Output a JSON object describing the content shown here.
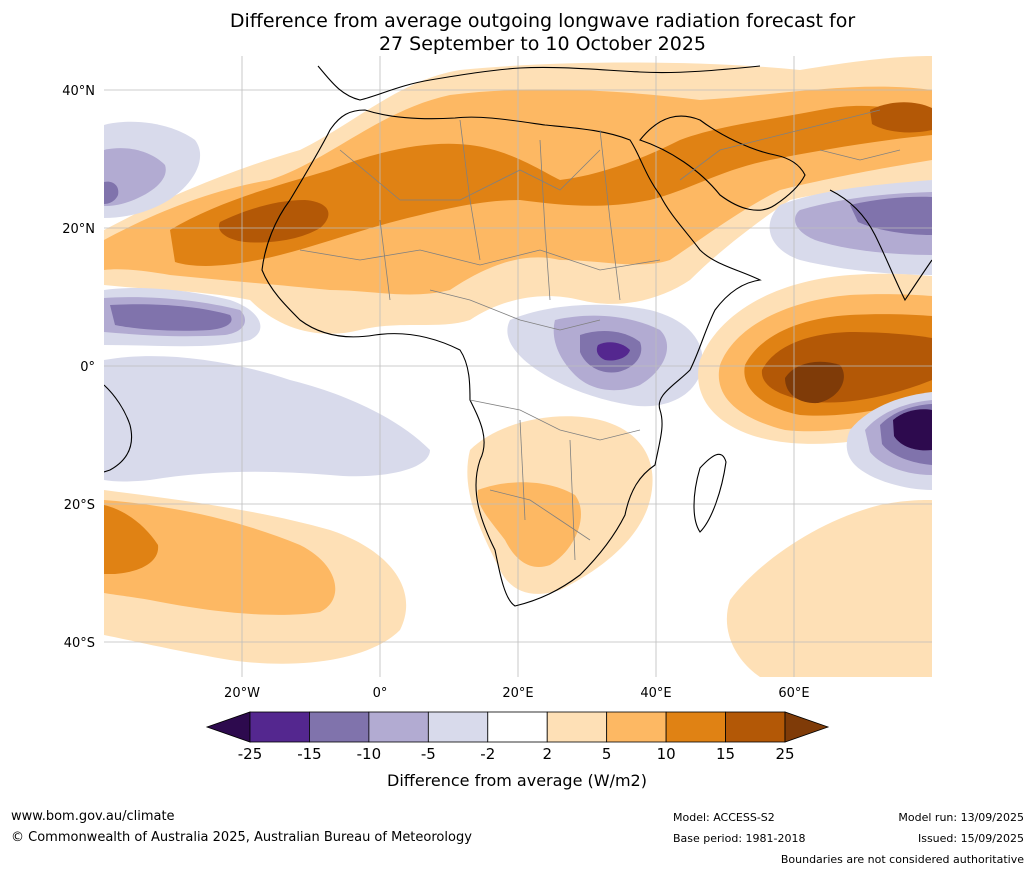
{
  "title": {
    "line1": "Difference from average outgoing longwave radiation forecast for",
    "line2": "27 September to 10 October 2025"
  },
  "axes": {
    "lat_labels": [
      "40°N",
      "20°N",
      "0°",
      "20°S",
      "40°S"
    ],
    "lon_labels": [
      "20°W",
      "0°",
      "20°E",
      "40°E",
      "60°E"
    ],
    "lat_values": [
      40,
      20,
      0,
      -20,
      -40
    ],
    "lon_values": [
      -20,
      0,
      20,
      40,
      60
    ],
    "extent": {
      "lon_min": -40,
      "lon_max": 80,
      "lat_min": -45,
      "lat_max": 45
    }
  },
  "colorbar": {
    "title": "Difference from average (W/m2)",
    "ticks": [
      "-25",
      "-15",
      "-10",
      "-5",
      "-2",
      "2",
      "5",
      "10",
      "15",
      "25"
    ],
    "colors": [
      "#2d0a4e",
      "#54278f",
      "#8073ac",
      "#b2abd2",
      "#d8daeb",
      "#ffffff",
      "#fee0b6",
      "#fdb863",
      "#e08214",
      "#b35806",
      "#7f3b08"
    ]
  },
  "footer": {
    "website": "www.bom.gov.au/climate",
    "copyright": "© Commonwealth of Australia 2025, Australian Bureau of Meteorology",
    "model": "Model: ACCESS-S2",
    "base_period": "Base period: 1981-2018",
    "model_run": "Model run: 13/09/2025",
    "issued": "Issued: 15/09/2025",
    "disclaimer": "Boundaries are not considered authoritative"
  }
}
